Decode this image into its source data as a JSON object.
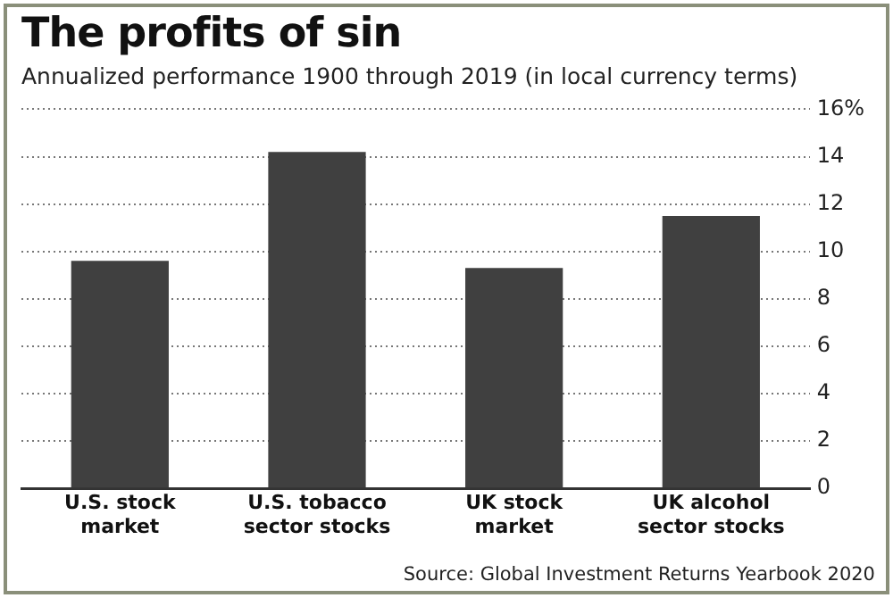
{
  "chart_data": {
    "type": "bar",
    "title": "The profits of sin",
    "subtitle": "Annualized performance 1900 through 2019 (in local currency terms)",
    "categories": [
      "U.S. stock\nmarket",
      "U.S. tobacco\nsector stocks",
      "UK stock\nmarket",
      "UK alcohol\nsector stocks"
    ],
    "values": [
      9.6,
      14.2,
      9.3,
      11.5
    ],
    "color": "#404040",
    "ylim": [
      0,
      16
    ],
    "yticks": [
      0,
      2,
      4,
      6,
      8,
      10,
      12,
      14,
      {
        "value": 16,
        "label": "16%"
      }
    ],
    "grid": "y",
    "annotations": [
      "Source: Global Investment Returns Yearbook 2020"
    ]
  }
}
